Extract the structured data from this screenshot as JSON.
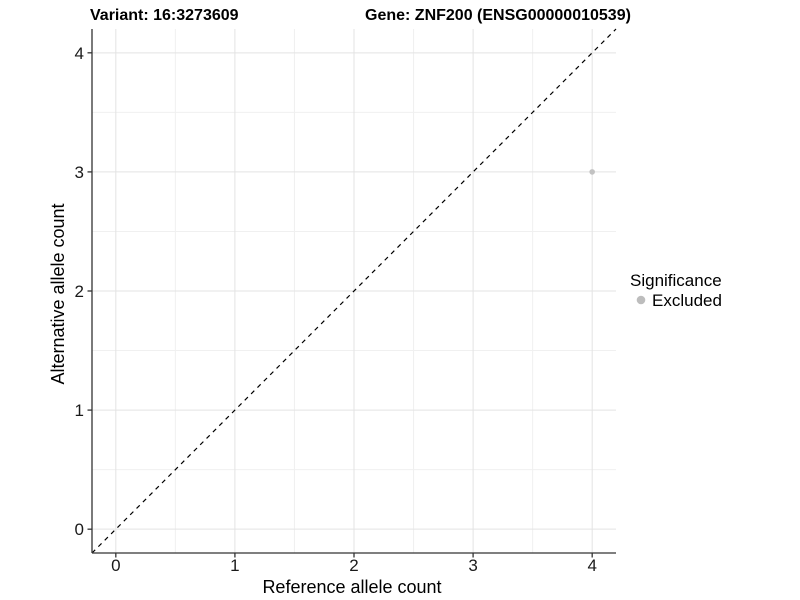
{
  "chart_data": {
    "type": "scatter",
    "titles": {
      "variant": "Variant: 16:3273609",
      "gene": "Gene: ZNF200 (ENSG00000010539)"
    },
    "xlabel": "Reference allele count",
    "ylabel": "Alternative allele count",
    "xlim": [
      -0.2,
      4.2
    ],
    "ylim": [
      -0.2,
      4.2
    ],
    "xticks": [
      "0",
      "1",
      "2",
      "3",
      "4"
    ],
    "yticks": [
      "0",
      "1",
      "2",
      "3",
      "4"
    ],
    "xtick_values": [
      0,
      1,
      2,
      3,
      4
    ],
    "ytick_values": [
      0,
      1,
      2,
      3,
      4
    ],
    "minor_grid_step": 0.5,
    "grid": true,
    "points": [
      {
        "x": 4,
        "y": 3,
        "group": "Excluded"
      }
    ],
    "identity_line": {
      "style": "dashed",
      "slope": 1,
      "intercept": 0
    },
    "legend": {
      "title": "Significance",
      "position": "right",
      "items": [
        {
          "label": "Excluded",
          "color": "#bdbdbd"
        }
      ]
    },
    "colors": {
      "point": "#c2c2c2",
      "grid_major": "#e3e3e3",
      "grid_minor": "#f0f0f0",
      "axis_line": "#333333",
      "identity_line": "#000000",
      "background": "#ffffff"
    }
  }
}
